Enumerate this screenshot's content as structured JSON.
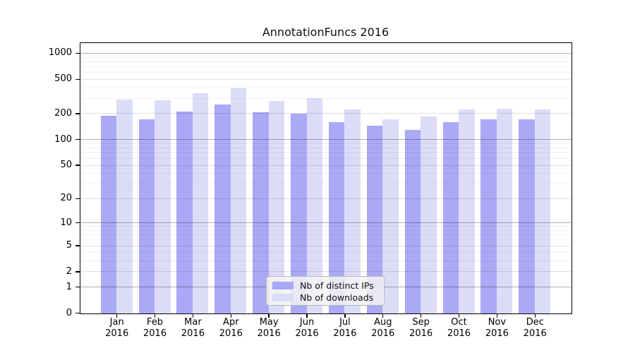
{
  "chart_data": {
    "type": "bar",
    "title": "AnnotationFuncs 2016",
    "categories": [
      "Jan 2016",
      "Feb 2016",
      "Mar 2016",
      "Apr 2016",
      "May 2016",
      "Jun 2016",
      "Jul 2016",
      "Aug 2016",
      "Sep 2016",
      "Oct 2016",
      "Nov 2016",
      "Dec 2016"
    ],
    "x_tick_line1": [
      "Jan",
      "Feb",
      "Mar",
      "Apr",
      "May",
      "Jun",
      "Jul",
      "Aug",
      "Sep",
      "Oct",
      "Nov",
      "Dec"
    ],
    "x_tick_line2": "2016",
    "series": [
      {
        "name": "Nb of distinct IPs",
        "color": "#a9a9f5",
        "values": [
          190,
          172,
          214,
          260,
          210,
          203,
          161,
          147,
          130,
          161,
          172,
          172
        ]
      },
      {
        "name": "Nb of downloads",
        "color": "#dcdcf9",
        "values": [
          295,
          291,
          351,
          400,
          282,
          305,
          224,
          174,
          186,
          224,
          231,
          228
        ]
      }
    ],
    "yscale": "log10(1+value)",
    "y_tick_values": [
      0,
      1,
      2,
      5,
      10,
      20,
      50,
      100,
      200,
      500,
      1000
    ],
    "y_tick_labels": [
      "0",
      "1",
      "2",
      "5",
      "10",
      "20",
      "50",
      "100",
      "200",
      "500",
      "1000"
    ],
    "ylim": [
      0,
      1300
    ],
    "grid": true,
    "legend_position": "inside-bottom-center"
  },
  "colors": {
    "bar_distinct_ips": "#a9a9f5",
    "bar_downloads": "#dcdcf9",
    "frame": "#000000",
    "grid_major": "#b3b3b3",
    "grid_mid": "#e0e0e0",
    "grid_minor": "#f1f1f1",
    "legend_bg": "#f5f5f5",
    "legend_border": "#b5b5b5"
  }
}
